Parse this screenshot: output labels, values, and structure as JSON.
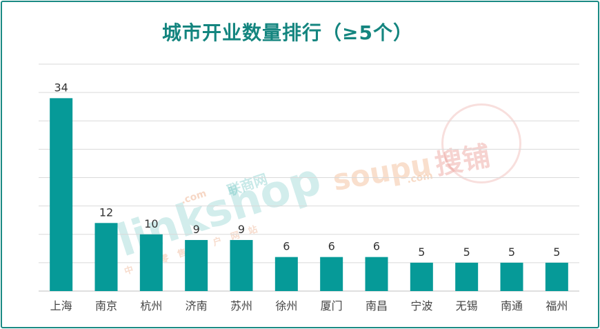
{
  "colors": {
    "bar": "#069a98",
    "frame": "#1a8a84",
    "grid": "#d9d9d9",
    "title": "#14857f"
  },
  "chart_data": {
    "type": "bar",
    "title": "城市开业数量排行（≥5个）",
    "xlabel": "",
    "ylabel": "",
    "categories": [
      "上海",
      "南京",
      "杭州",
      "济南",
      "苏州",
      "徐州",
      "厦门",
      "南昌",
      "宁波",
      "无锡",
      "南通",
      "福州"
    ],
    "values": [
      34,
      12,
      10,
      9,
      9,
      6,
      6,
      6,
      5,
      5,
      5,
      5
    ],
    "ylim": [
      0,
      40
    ],
    "grid": true,
    "data_labels": true,
    "legend": "none"
  },
  "watermarks": {
    "linkshop": {
      "brand": "linkshop",
      "domain": ".com",
      "cn_name": "联商网",
      "slogan": "中国零售门户网站"
    },
    "soupu": {
      "brand": "soupu",
      "domain": ".com",
      "cn_name": "搜铺"
    }
  }
}
